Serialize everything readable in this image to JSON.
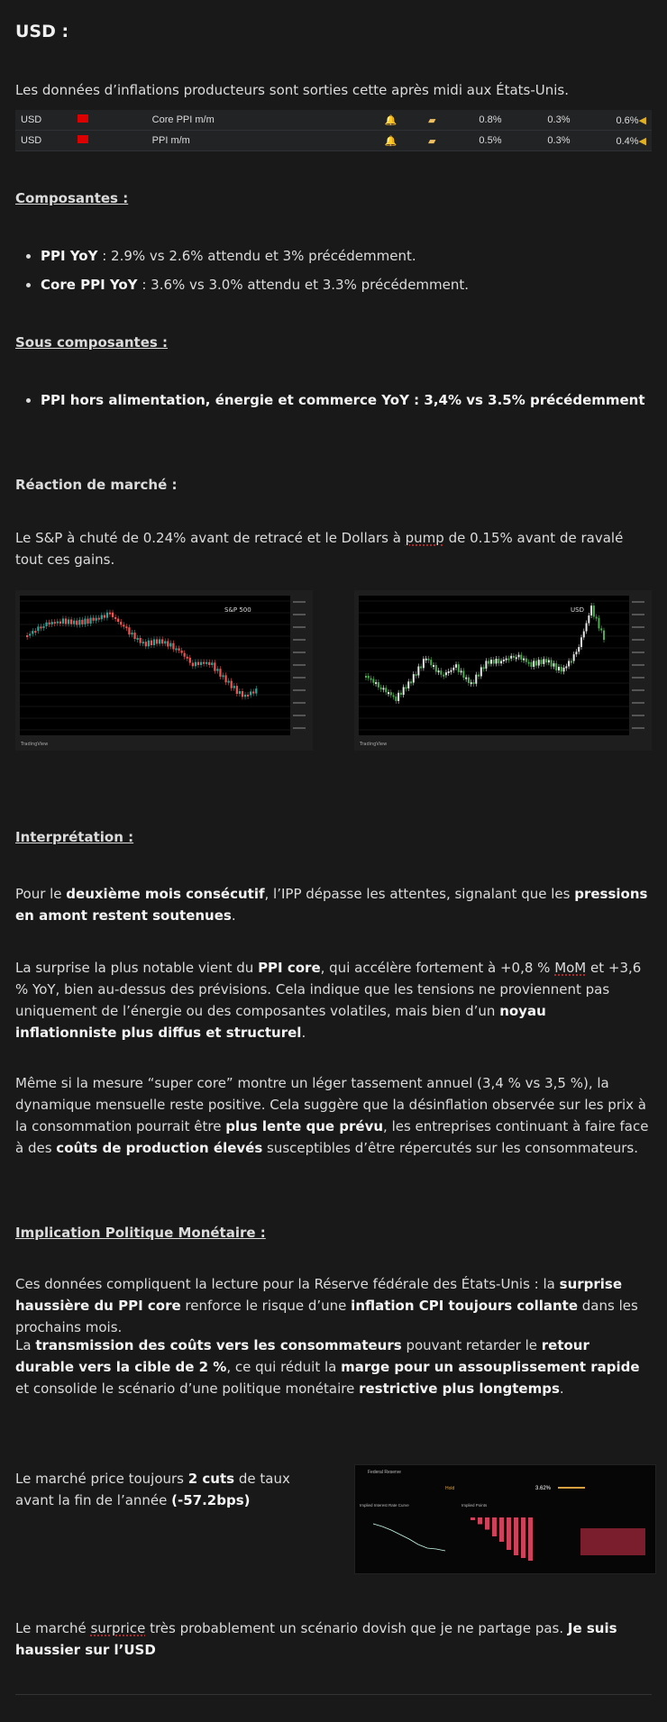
{
  "title": "USD :",
  "intro": "Les données d’inflations producteurs sont sorties cette après midi aux États-Unis.",
  "calendar": [
    {
      "currency": "USD",
      "event": "Core PPI m/m",
      "actual": "0.8%",
      "forecast": "0.3%",
      "previous": "0.6%"
    },
    {
      "currency": "USD",
      "event": "PPI m/m",
      "actual": "0.5%",
      "forecast": "0.3%",
      "previous": "0.4%"
    }
  ],
  "colors": {
    "actual": "#5cc05c",
    "previous": "#d24a4a",
    "bg": "#191919"
  },
  "sections": {
    "composantes": "Composantes :",
    "sous": "Sous composantes :",
    "reaction": "Réaction de marché :",
    "interp": "Interprétation :",
    "implication": "Implication Politique Monétaire :"
  },
  "composantes": [
    {
      "label": "PPI YoY",
      "text": " : 2.9% vs 2.6% attendu et 3% précédemment."
    },
    {
      "label": "Core PPI YoY",
      "text": " : 3.6% vs 3.0% attendu et 3.3% précédemment."
    }
  ],
  "sous": [
    "PPI hors alimentation, énergie et commerce YoY : 3,4% vs 3.5% précédemment"
  ],
  "reaction_text": [
    {
      "t": "Le S&P à chuté de 0.24% avant de retracé et le Dollars à "
    },
    {
      "t": "pump",
      "s": 1
    },
    {
      "t": " de 0.15% avant de ravalé tout ces gains."
    }
  ],
  "charts": {
    "spx_label": "S&P 500",
    "usd_label": "USD",
    "brand": "TradingView",
    "marker": "PPI"
  },
  "interp_paras": [
    [
      {
        "t": "Pour le "
      },
      {
        "t": "deuxième mois consécutif",
        "b": 1
      },
      {
        "t": ", l’IPP dépasse les attentes, signalant que les "
      },
      {
        "t": "pressions en amont restent soutenues",
        "b": 1
      },
      {
        "t": "."
      }
    ],
    [
      {
        "t": "La surprise la plus notable vient du "
      },
      {
        "t": "PPI core",
        "b": 1
      },
      {
        "t": ", qui accélère fortement à +0,8 % "
      },
      {
        "t": "MoM",
        "s": 1
      },
      {
        "t": " et +3,6 % YoY, bien au-dessus des prévisions. Cela indique que les tensions ne proviennent pas uniquement de l’énergie ou des composantes volatiles, mais bien d’un "
      },
      {
        "t": "noyau inflationniste plus diffus et structurel",
        "b": 1
      },
      {
        "t": "."
      }
    ],
    [
      {
        "t": "Même si la mesure “super core” montre un léger tassement annuel (3,4 % vs 3,5 %), la dynamique mensuelle reste positive. Cela suggère que la désinflation observée sur les prix à la consommation pourrait être "
      },
      {
        "t": "plus lente que prévu",
        "b": 1
      },
      {
        "t": ", les entreprises continuant à faire face à des "
      },
      {
        "t": "coûts de production élevés",
        "b": 1
      },
      {
        "t": " susceptibles d’être répercutés sur les consommateurs."
      }
    ]
  ],
  "impl_paras": [
    [
      {
        "t": "Ces données compliquent la lecture pour la Réserve fédérale des États-Unis : la "
      },
      {
        "t": "surprise haussière du PPI core",
        "b": 1
      },
      {
        "t": " renforce le risque d’une "
      },
      {
        "t": "inflation CPI toujours collante",
        "b": 1
      },
      {
        "t": " dans les prochains mois."
      }
    ],
    [
      {
        "t": "La "
      },
      {
        "t": "transmission des coûts vers les consommateurs",
        "b": 1
      },
      {
        "t": " pouvant retarder le "
      },
      {
        "t": "retour durable vers la cible de 2 %",
        "b": 1
      },
      {
        "t": ", ce qui réduit la "
      },
      {
        "t": "marge pour un assouplissement rapide",
        "b": 1
      },
      {
        "t": " et consolide le scénario d’une politique monétaire "
      },
      {
        "t": "restrictive plus longtemps",
        "b": 1
      },
      {
        "t": "."
      }
    ],
    [
      {
        "t": "Le marché price toujours "
      },
      {
        "t": "2 cuts",
        "b": 1
      },
      {
        "t": " de taux avant la fin de l’année "
      },
      {
        "t": "(-57.2bps)",
        "b": 1
      }
    ],
    [
      {
        "t": "Le marché "
      },
      {
        "t": "surprice",
        "s": 1
      },
      {
        "t": " très probablement un scénario dovish que je ne partage pas. "
      },
      {
        "t": "Je suis haussier sur l’USD",
        "b": 1
      }
    ]
  ],
  "fed": {
    "title": "Federal Reserve",
    "curve": "Implied Interest Rate Curve",
    "points": "Implied Points",
    "move": "Hold",
    "rate": "3.62%"
  }
}
